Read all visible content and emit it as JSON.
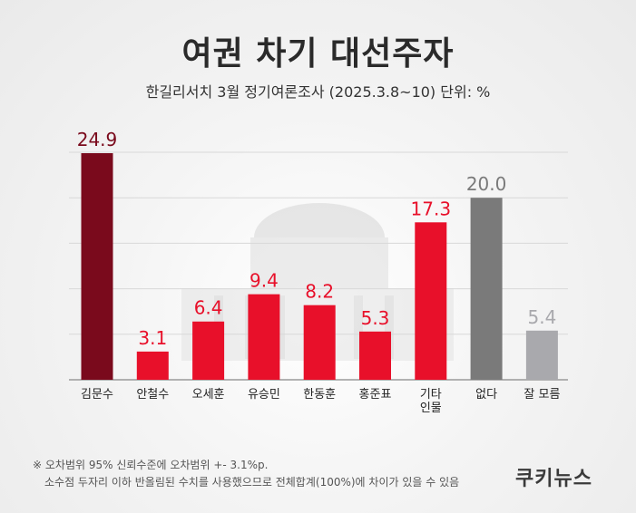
{
  "title": "여권 차기 대선주자",
  "subtitle": "한길리서치 3월 정기여론조사 (2025.3.8~10) 단위: %",
  "note": {
    "line1": "※ 오차범위 95% 신뢰수준에 오차범위 +- 3.1%p.",
    "line2": "소수점 두자리 이하 반올림된 수치를 사용했으므로 전체합계(100%)에 차이가 있을 수 있음"
  },
  "brand": "쿠키뉴스",
  "colors": {
    "top": "#7a0a1c",
    "red": "#e8102a",
    "gray_dark": "#7a7a7a",
    "gray_light": "#a9a9ad",
    "label_top": "#7a0a1c",
    "label_red": "#e8102a",
    "label_gray_dark": "#7a7a7a",
    "label_gray_light": "#a9a9ad"
  },
  "chart_data": {
    "type": "bar",
    "categories": [
      "김문수",
      "안철수",
      "오세훈",
      "유승민",
      "한동훈",
      "홍준표",
      "기타\n인물",
      "없다",
      "잘 모름"
    ],
    "values": [
      24.9,
      3.1,
      6.4,
      9.4,
      8.2,
      5.3,
      17.3,
      20.0,
      5.4
    ],
    "value_labels": [
      "24.9",
      "3.1",
      "6.4",
      "9.4",
      "8.2",
      "5.3",
      "17.3",
      "20.0",
      "5.4"
    ],
    "bar_colors": [
      "top",
      "red",
      "red",
      "red",
      "red",
      "red",
      "red",
      "gray_dark",
      "gray_light"
    ],
    "ylim": [
      0,
      25
    ],
    "grid": true,
    "xlabel": "",
    "ylabel": ""
  }
}
